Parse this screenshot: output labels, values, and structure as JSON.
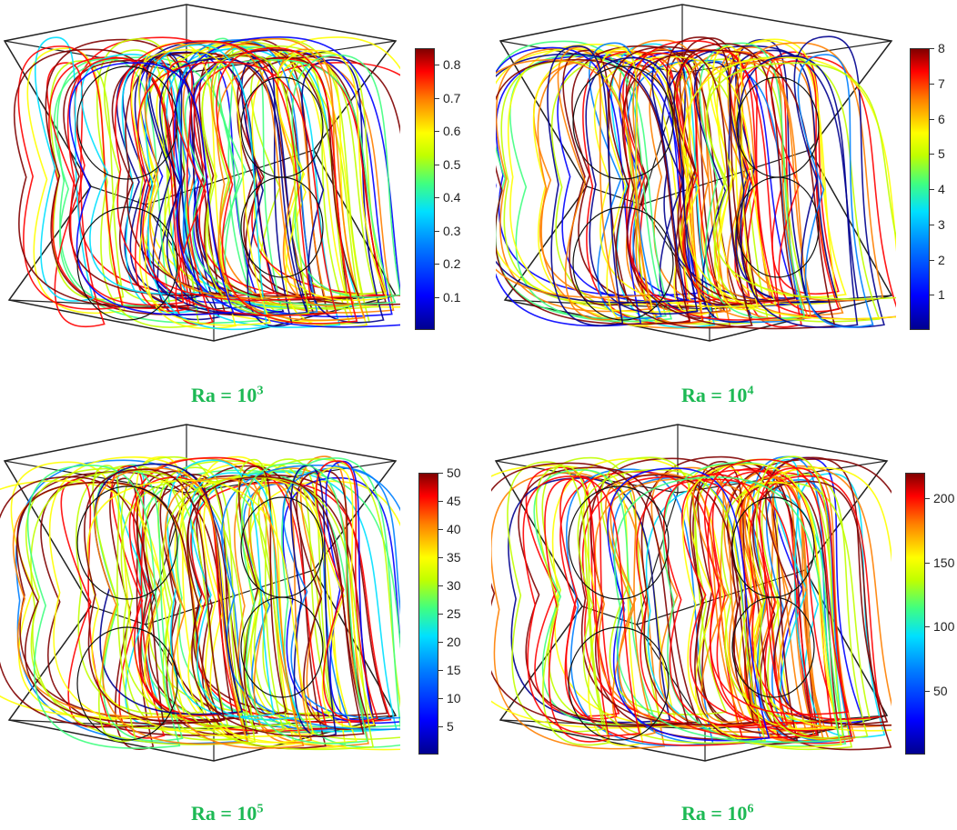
{
  "panels": [
    {
      "caption_base": "Ra = 10",
      "caption_exp": "3",
      "colorbar": {
        "min": 0,
        "max": 0.85,
        "ticks": [
          "0.1",
          "0.2",
          "0.3",
          "0.4",
          "0.5",
          "0.6",
          "0.7",
          "0.8"
        ],
        "tick_values": [
          0.1,
          0.2,
          0.3,
          0.4,
          0.5,
          0.6,
          0.7,
          0.8
        ]
      }
    },
    {
      "caption_base": "Ra = 10",
      "caption_exp": "4",
      "colorbar": {
        "min": 0,
        "max": 8,
        "ticks": [
          "1",
          "2",
          "3",
          "4",
          "5",
          "6",
          "7",
          "8"
        ],
        "tick_values": [
          1,
          2,
          3,
          4,
          5,
          6,
          7,
          8
        ]
      }
    },
    {
      "caption_base": "Ra = 10",
      "caption_exp": "5",
      "colorbar": {
        "min": 0,
        "max": 50,
        "ticks": [
          "5",
          "10",
          "15",
          "20",
          "25",
          "30",
          "35",
          "40",
          "45",
          "50"
        ],
        "tick_values": [
          5,
          10,
          15,
          20,
          25,
          30,
          35,
          40,
          45,
          50
        ]
      }
    },
    {
      "caption_base": "Ra = 10",
      "caption_exp": "6",
      "colorbar": {
        "min": 0,
        "max": 220,
        "ticks": [
          "50",
          "100",
          "150",
          "200"
        ],
        "tick_values": [
          50,
          100,
          150,
          200
        ]
      }
    }
  ],
  "colormap": [
    "#00008f",
    "#0000ff",
    "#0080ff",
    "#00e0ff",
    "#40ff80",
    "#c0ff00",
    "#ffff00",
    "#ff8000",
    "#ff0000",
    "#800000"
  ],
  "caption_color": "#1db954"
}
